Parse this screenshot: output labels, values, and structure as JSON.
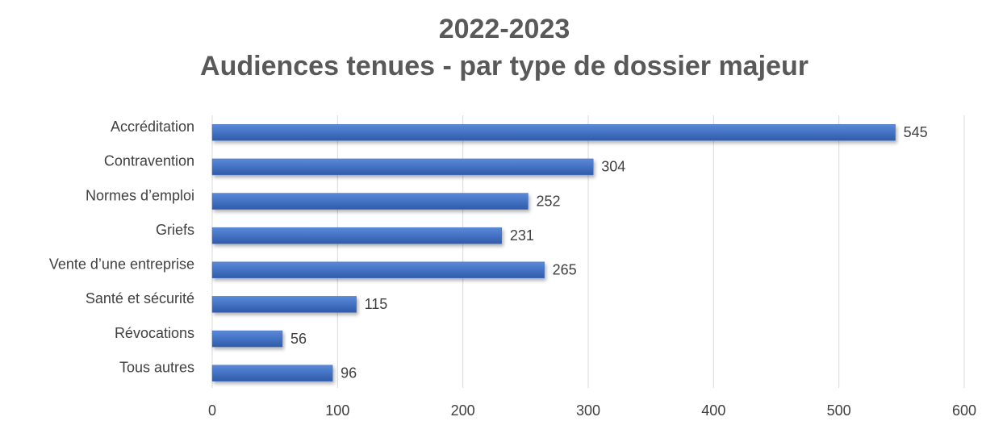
{
  "chart_data": {
    "type": "bar",
    "orientation": "horizontal",
    "title": [
      "2022-2023",
      "Audiences tenues - par type de dossier majeur"
    ],
    "categories": [
      "Accréditation",
      "Contravention",
      "Normes d’emploi",
      "Griefs",
      "Vente d’une entreprise",
      "Santé et sécurité",
      "Révocations",
      "Tous autres"
    ],
    "values": [
      545,
      304,
      252,
      231,
      265,
      115,
      56,
      96
    ],
    "color": "#4472c4",
    "xlim": [
      0,
      600
    ],
    "xticks": [
      0,
      100,
      200,
      300,
      400,
      500,
      600
    ],
    "grid": true
  }
}
